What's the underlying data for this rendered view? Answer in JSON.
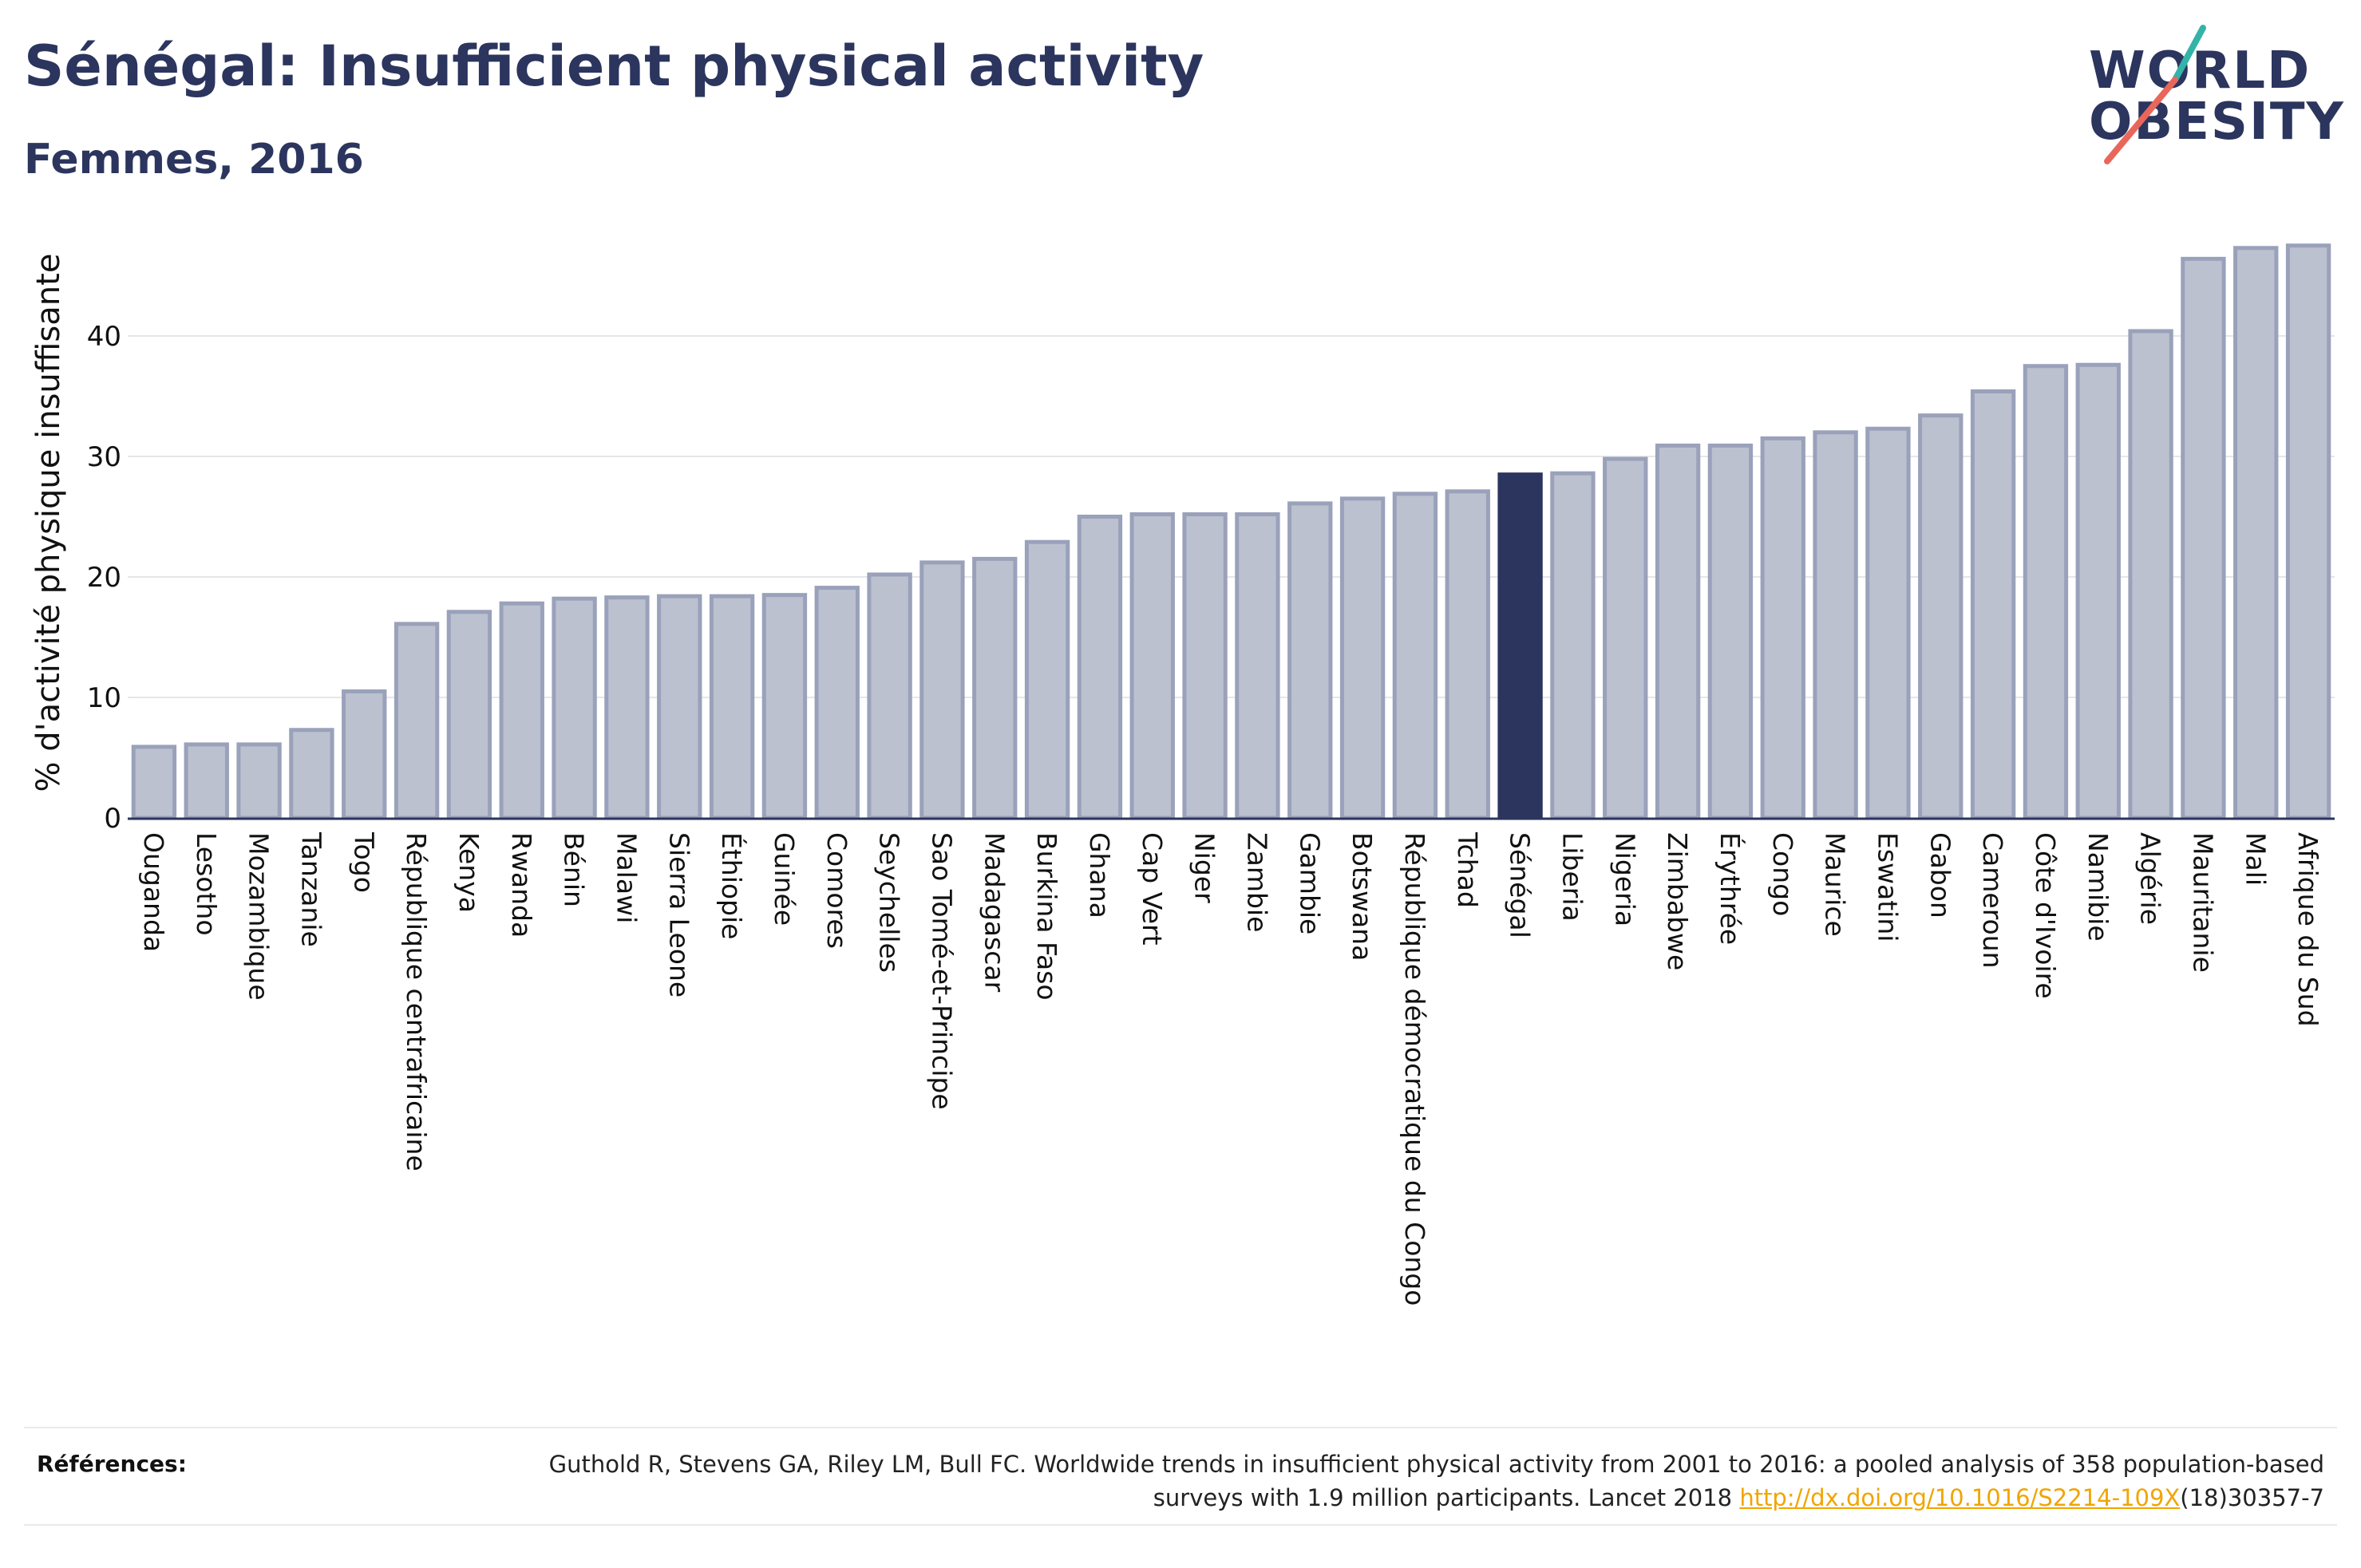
{
  "header": {
    "title": "Sénégal: Insufficient physical activity",
    "subtitle": "Femmes, 2016"
  },
  "logo": {
    "line1": "WORLD",
    "line2": "OBESITY"
  },
  "colors": {
    "bar": "#bcc1d0",
    "bar_border": "#9aa1ba",
    "highlight": "#2b355e",
    "accent_teal": "#34b3a8",
    "accent_coral": "#e8675a"
  },
  "chart_data": {
    "type": "bar",
    "ylabel": "% d'activité physique insuffisante",
    "xlabel": "",
    "ylim": [
      0,
      49
    ],
    "yticks": [
      0,
      10,
      20,
      30,
      40
    ],
    "grid": true,
    "highlight": "Sénégal",
    "categories": [
      "Ouganda",
      "Lesotho",
      "Mozambique",
      "Tanzanie",
      "Togo",
      "République centrafricaine",
      "Kenya",
      "Rwanda",
      "Bénin",
      "Malawi",
      "Sierra Leone",
      "Éthiopie",
      "Guinée",
      "Comores",
      "Seychelles",
      "Sao Tomé-et-Principe",
      "Madagascar",
      "Burkina Faso",
      "Ghana",
      "Cap Vert",
      "Niger",
      "Zambie",
      "Gambie",
      "Botswana",
      "République démocratique du Congo",
      "Tchad",
      "Sénégal",
      "Liberia",
      "Nigeria",
      "Zimbabwe",
      "Érythrée",
      "Congo",
      "Maurice",
      "Eswatini",
      "Gabon",
      "Cameroun",
      "Côte d'Ivoire",
      "Namibie",
      "Algérie",
      "Mauritanie",
      "Mali",
      "Afrique du Sud"
    ],
    "values": [
      5.9,
      6.1,
      6.1,
      7.3,
      10.5,
      16.1,
      17.1,
      17.8,
      18.2,
      18.3,
      18.4,
      18.4,
      18.5,
      19.1,
      20.2,
      21.2,
      21.5,
      22.9,
      25.0,
      25.2,
      25.2,
      25.2,
      26.1,
      26.5,
      26.9,
      27.1,
      28.5,
      28.6,
      29.8,
      30.9,
      30.9,
      31.5,
      32.0,
      32.3,
      33.4,
      35.4,
      37.5,
      37.6,
      40.4,
      46.4,
      47.3,
      47.5
    ]
  },
  "references": {
    "label": "Références:",
    "text_before": "Guthold R, Stevens GA, Riley LM, Bull FC. Worldwide trends in insufficient physical activity from 2001 to 2016: a pooled analysis of 358 population-based surveys with 1.9 million participants. Lancet 2018 ",
    "link": "http://dx.doi.org/10.1016/S2214-109X",
    "text_after": "(18)30357-7"
  }
}
